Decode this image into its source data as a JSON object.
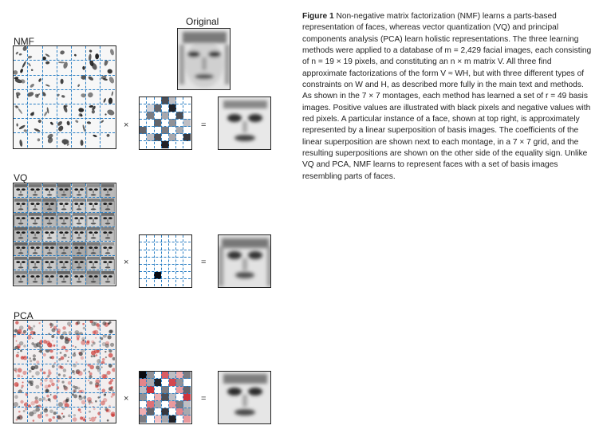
{
  "labels": {
    "original": "Original",
    "nmf": "NMF",
    "vq": "VQ",
    "pca": "PCA",
    "times": "×",
    "equals": "="
  },
  "caption": {
    "heading": "Figure 1",
    "text": "Non-negative matrix factorization (NMF) learns a parts-based representation of faces, whereas vector quantization (VQ) and principal components analysis (PCA) learn holistic representations. The three learning methods were applied to a database of m = 2,429 facial images, each consisting of n = 19 × 19 pixels, and constituting an n × m matrix V. All three find approximate factorizations of the form V ≈ WH, but with three different types of constraints on W and H, as described more fully in the main text and methods. As shown in the 7 × 7 montages, each method has learned a set of r = 49 basis images. Positive values are illustrated with black pixels and negative values with red pixels. A particular instance of a face, shown at top right, is approximately represented by a linear superposition of basis images. The coefficients of the linear superposition are shown next to each montage, in a 7 × 7 grid, and the resulting superpositions are shown on the other side of the equality sign. Unlike VQ and PCA, NMF learns to represent faces with a set of basis images resembling parts of faces."
  },
  "colors": {
    "grid_dash": "#2a7fc4",
    "positive": "#111111",
    "negative": "#c8302c",
    "border": "#222222"
  },
  "coefficients": {
    "nmf": [
      [
        0,
        0,
        0,
        0.7,
        0.2,
        0,
        0
      ],
      [
        0,
        0.1,
        0.6,
        0,
        0.9,
        0,
        0
      ],
      [
        0,
        0.5,
        0,
        0.3,
        0,
        0.7,
        0
      ],
      [
        0,
        0,
        0.6,
        0,
        0.4,
        0,
        0.2
      ],
      [
        0.6,
        0,
        0,
        0.5,
        0,
        0.3,
        0
      ],
      [
        0,
        0.2,
        0.7,
        0,
        0.3,
        0,
        0.8
      ],
      [
        0,
        0,
        0,
        0.9,
        0,
        0,
        0
      ]
    ],
    "vq": [
      [
        0,
        0,
        0,
        0,
        0,
        0,
        0
      ],
      [
        0,
        0,
        0,
        0,
        0,
        0,
        0
      ],
      [
        0,
        0,
        0,
        0,
        0,
        0,
        0
      ],
      [
        0,
        0,
        0,
        0,
        0,
        0,
        0
      ],
      [
        0,
        0,
        0,
        0,
        0,
        0,
        0
      ],
      [
        0,
        0,
        1,
        0,
        0,
        0,
        0
      ],
      [
        0,
        0,
        0,
        0,
        0,
        0,
        0
      ]
    ],
    "pca": [
      [
        1,
        0.4,
        0,
        -0.7,
        0.2,
        -0.3,
        0.5
      ],
      [
        -0.5,
        0.3,
        0.9,
        0,
        -0.8,
        0.4,
        0
      ],
      [
        0.2,
        -0.9,
        0,
        0.5,
        0,
        -0.4,
        0.6
      ],
      [
        0.4,
        0,
        -0.3,
        0.7,
        0.2,
        0,
        -0.9
      ],
      [
        0,
        -0.6,
        0.3,
        0,
        -0.4,
        0.5,
        0.2
      ],
      [
        -0.3,
        0.6,
        0,
        0.8,
        0,
        -0.5,
        0.3
      ],
      [
        0.5,
        0,
        -0.2,
        0.3,
        0.9,
        0,
        -0.4
      ]
    ]
  }
}
